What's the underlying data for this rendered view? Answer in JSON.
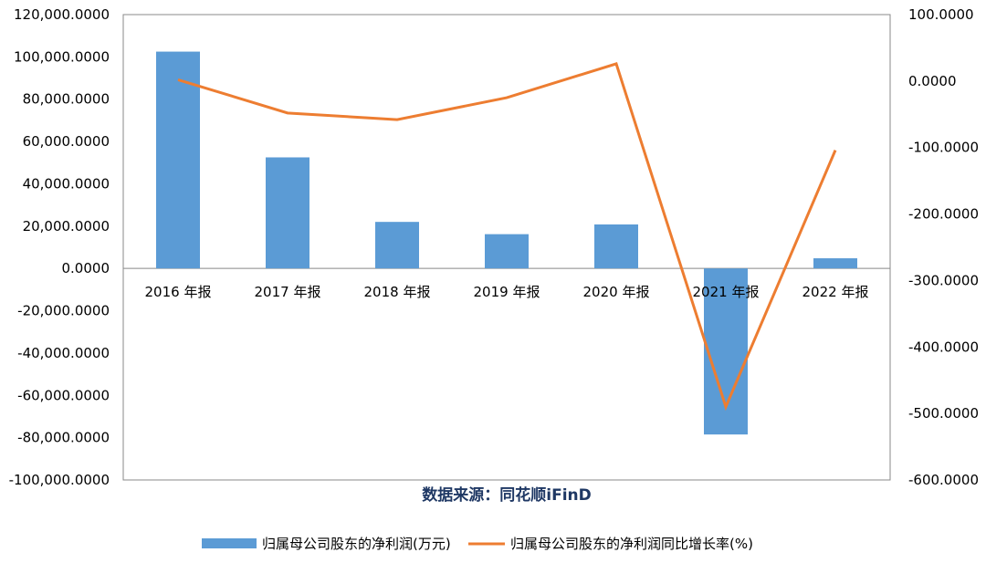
{
  "chart_data": {
    "type": "bar",
    "categories": [
      "2016 年报",
      "2017 年报",
      "2018 年报",
      "2019 年报",
      "2020 年报",
      "2021 年报",
      "2022 年报"
    ],
    "series": [
      {
        "name": "归属母公司股东的净利润(万元)",
        "type": "bar",
        "axis": "left",
        "color": "#5b9bd5",
        "values": [
          102500,
          52500,
          22000,
          16200,
          20800,
          -78500,
          4800
        ]
      },
      {
        "name": "归属母公司股东的净利润同比增长率(%)",
        "type": "line",
        "axis": "right",
        "color": "#ed7d31",
        "values": [
          2,
          -48,
          -58,
          -25,
          26,
          -490,
          -104
        ]
      }
    ],
    "ylim": [
      -100000,
      120000
    ],
    "y_ticks": [
      "120,000.0000",
      "100,000.0000",
      "80,000.0000",
      "60,000.0000",
      "40,000.0000",
      "20,000.0000",
      "0.0000",
      "-20,000.0000",
      "-40,000.0000",
      "-60,000.0000",
      "-80,000.0000",
      "-100,000.0000"
    ],
    "y_tick_values": [
      120000,
      100000,
      80000,
      60000,
      40000,
      20000,
      0,
      -20000,
      -40000,
      -60000,
      -80000,
      -100000
    ],
    "y2lim": [
      -600,
      100
    ],
    "y2_ticks": [
      "100.0000",
      "0.0000",
      "-100.0000",
      "-200.0000",
      "-300.0000",
      "-400.0000",
      "-500.0000",
      "-600.0000"
    ],
    "y2_tick_values": [
      100,
      0,
      -100,
      -200,
      -300,
      -400,
      -500,
      -600
    ],
    "source_note": "数据来源：同花顺iFinD",
    "legend_position": "bottom",
    "grid": false
  }
}
